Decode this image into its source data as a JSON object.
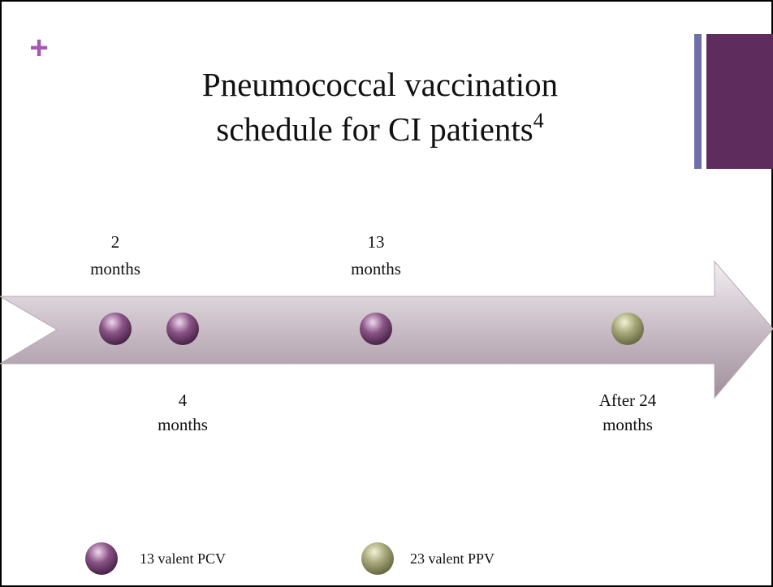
{
  "plus": "+",
  "title": {
    "lines": [
      "Pneumococcal vaccination",
      "schedule for CI patients"
    ],
    "superscript": "4"
  },
  "milestones": [
    {
      "lines": [
        "2",
        "months"
      ]
    },
    {
      "lines": [
        "4",
        "months"
      ]
    },
    {
      "lines": [
        "13",
        "months"
      ]
    },
    {
      "lines": [
        "After 24",
        "months"
      ]
    }
  ],
  "legend": [
    {
      "label": "13 valent PCV"
    },
    {
      "label": "23 valent PPV"
    }
  ]
}
